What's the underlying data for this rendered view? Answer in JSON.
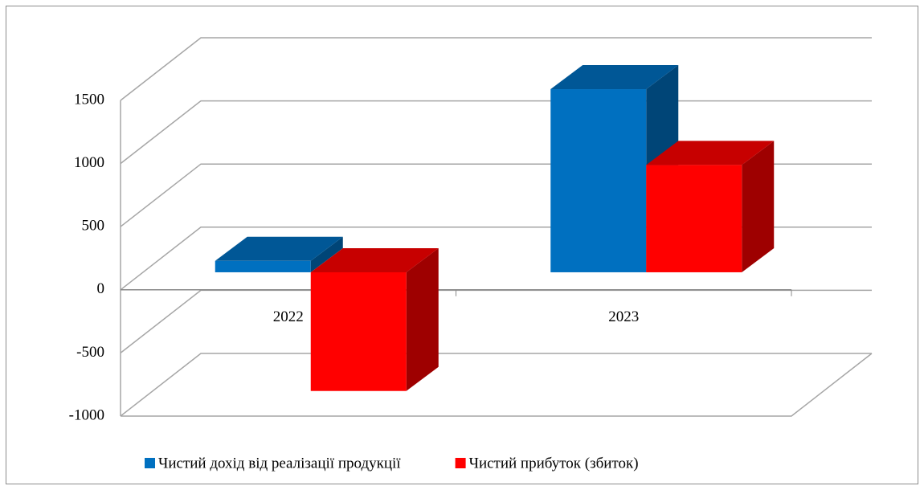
{
  "chart_data": {
    "type": "bar3d",
    "categories": [
      "2022",
      "2023"
    ],
    "series": [
      {
        "name": "Чистий дохід від реалізації продукції",
        "color": "#0070c0",
        "values": [
          90,
          1450
        ]
      },
      {
        "name": "Чистий прибуток (збиток)",
        "color": "#ff0000",
        "values": [
          -940,
          850
        ]
      }
    ],
    "ylim": [
      -1000,
      1500
    ],
    "yticks": [
      -1000,
      -500,
      0,
      500,
      1000,
      1500
    ],
    "grid": true,
    "legend": "bottom"
  }
}
